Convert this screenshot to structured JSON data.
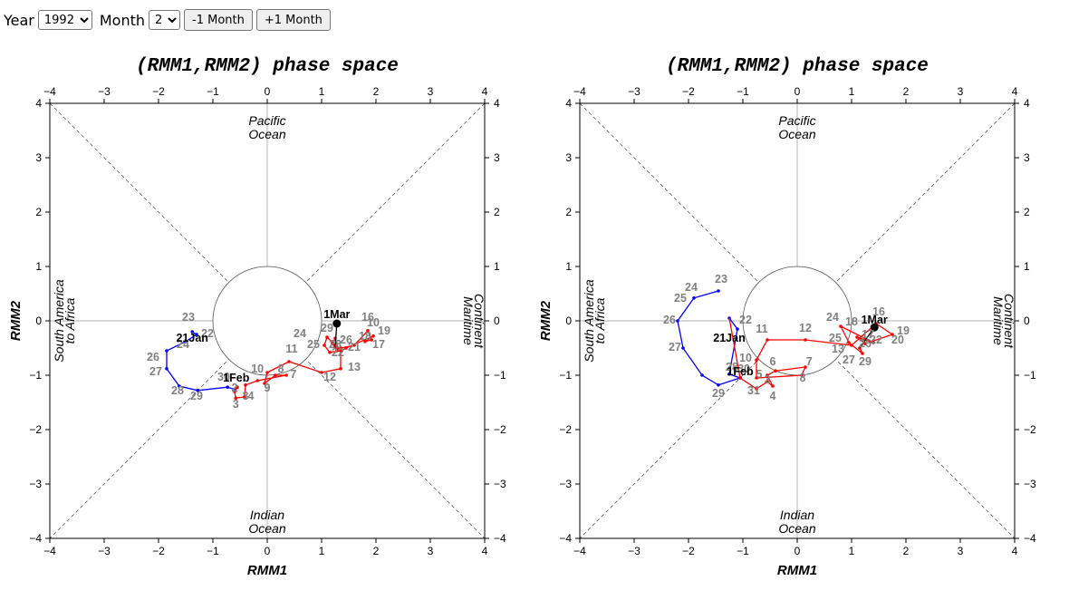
{
  "controls": {
    "year_label": "Year",
    "year_value": "1992",
    "month_label": "Month",
    "month_value": "2",
    "prev_button": "-1 Month",
    "next_button": "+1 Month"
  },
  "chart_data": [
    {
      "type": "scatter",
      "title": "(RMM1,RMM2) phase space",
      "xlabel": "RMM1",
      "ylabel": "RMM2",
      "xlim": [
        -4,
        4
      ],
      "ylim": [
        -4,
        4
      ],
      "ticks": [
        "-4",
        "-3",
        "-2",
        "-1",
        "0",
        "1",
        "2",
        "3",
        "4"
      ],
      "regions": {
        "top": [
          "Pacific",
          "Ocean"
        ],
        "bottom": [
          "Indian",
          "Ocean"
        ],
        "left": [
          "South America",
          "to Africa"
        ],
        "right": [
          "Maritime",
          "Continent"
        ]
      },
      "colors": {
        "month1": "#0000ff",
        "month2": "#ff0000",
        "month3": "#000000",
        "label": "#808080"
      },
      "series": [
        {
          "month": "Jan",
          "values": [
            {
              "x": -1.38,
              "y": -0.2,
              "label": "22"
            },
            {
              "x": -1.3,
              "y": -0.25,
              "label": "23"
            },
            {
              "x": -1.5,
              "y": -0.38,
              "label": "24"
            },
            {
              "x": -1.85,
              "y": -0.55,
              "label": "26"
            },
            {
              "x": -1.85,
              "y": -0.88,
              "label": "27"
            },
            {
              "x": -1.62,
              "y": -1.2,
              "label": "28"
            },
            {
              "x": -1.28,
              "y": -1.28,
              "label": "29"
            },
            {
              "x": -0.73,
              "y": -1.22,
              "label": "30"
            },
            {
              "x": -0.6,
              "y": -1.26,
              "label": "31"
            }
          ]
        },
        {
          "month": "Feb",
          "values": [
            {
              "x": -0.55,
              "y": -1.22,
              "label": "1"
            },
            {
              "x": -0.6,
              "y": -1.3,
              "label": "2"
            },
            {
              "x": -0.58,
              "y": -1.42,
              "label": "3"
            },
            {
              "x": -0.42,
              "y": -1.4,
              "label": "4"
            },
            {
              "x": -0.4,
              "y": -1.18,
              "label": "5"
            },
            {
              "x": -0.18,
              "y": -1.1,
              "label": "6"
            },
            {
              "x": 0.35,
              "y": -1.0,
              "label": "7"
            },
            {
              "x": 0.15,
              "y": -1.0,
              "label": "8"
            },
            {
              "x": -0.05,
              "y": -1.15,
              "label": "9"
            },
            {
              "x": 0.0,
              "y": -0.95,
              "label": "10"
            },
            {
              "x": 0.4,
              "y": -0.75,
              "label": "11"
            },
            {
              "x": 1.0,
              "y": -0.95,
              "label": "12"
            },
            {
              "x": 1.35,
              "y": -0.88,
              "label": "13"
            },
            {
              "x": 1.35,
              "y": -0.5,
              "label": "14"
            },
            {
              "x": 1.6,
              "y": -0.45,
              "label": "15"
            },
            {
              "x": 1.85,
              "y": -0.18,
              "label": "16"
            },
            {
              "x": 1.92,
              "y": -0.35,
              "label": "17"
            },
            {
              "x": 1.8,
              "y": -0.38,
              "label": "18"
            },
            {
              "x": 1.95,
              "y": -0.28,
              "label": "19"
            },
            {
              "x": 1.45,
              "y": -0.5,
              "label": "20"
            },
            {
              "x": 1.35,
              "y": -0.55,
              "label": "21"
            },
            {
              "x": 1.15,
              "y": -0.58,
              "label": "22"
            },
            {
              "x": 1.05,
              "y": -0.45,
              "label": "23"
            },
            {
              "x": 1.1,
              "y": -0.3,
              "label": "24"
            },
            {
              "x": 1.3,
              "y": -0.5,
              "label": "25"
            },
            {
              "x": 1.25,
              "y": -0.32,
              "label": "26"
            },
            {
              "x": 1.2,
              "y": -0.42,
              "label": "27"
            },
            {
              "x": 1.28,
              "y": -0.55,
              "label": "28"
            },
            {
              "x": 1.25,
              "y": -0.48,
              "label": "29"
            }
          ]
        },
        {
          "month": "Mar",
          "values": [
            {
              "x": 1.28,
              "y": -0.05,
              "label": "1"
            }
          ]
        }
      ],
      "dated_labels": [
        {
          "x": -1.38,
          "y": -0.38,
          "text": "21Jan"
        },
        {
          "x": -0.57,
          "y": -1.12,
          "text": "1Feb"
        },
        {
          "x": 1.28,
          "y": 0.05,
          "text": "1Mar"
        }
      ],
      "day_labels": [
        {
          "x": -1.45,
          "y": 0.0,
          "text": "23"
        },
        {
          "x": -1.1,
          "y": -0.3,
          "text": "22"
        },
        {
          "x": -1.55,
          "y": -0.5,
          "text": "24"
        },
        {
          "x": -2.1,
          "y": -0.73,
          "text": "26"
        },
        {
          "x": -2.05,
          "y": -1.0,
          "text": "27"
        },
        {
          "x": -1.65,
          "y": -1.35,
          "text": "28"
        },
        {
          "x": -1.3,
          "y": -1.45,
          "text": "29"
        },
        {
          "x": -0.8,
          "y": -1.1,
          "text": "30"
        },
        {
          "x": -0.6,
          "y": -1.3,
          "text": "2"
        },
        {
          "x": -0.58,
          "y": -1.6,
          "text": "3"
        },
        {
          "x": -0.3,
          "y": -1.45,
          "text": "4"
        },
        {
          "x": 0.0,
          "y": -1.3,
          "text": "9"
        },
        {
          "x": 0.25,
          "y": -0.95,
          "text": "8"
        },
        {
          "x": 0.48,
          "y": -1.05,
          "text": "7"
        },
        {
          "x": -0.18,
          "y": -0.95,
          "text": "10"
        },
        {
          "x": 0.45,
          "y": -0.58,
          "text": "11"
        },
        {
          "x": 1.15,
          "y": -1.1,
          "text": "12"
        },
        {
          "x": 1.6,
          "y": -0.92,
          "text": "13"
        },
        {
          "x": 1.85,
          "y": 0.0,
          "text": "16"
        },
        {
          "x": 1.95,
          "y": -0.1,
          "text": "10"
        },
        {
          "x": 2.15,
          "y": -0.25,
          "text": "19"
        },
        {
          "x": 2.05,
          "y": -0.5,
          "text": "17"
        },
        {
          "x": 1.8,
          "y": -0.35,
          "text": "18"
        },
        {
          "x": 1.6,
          "y": -0.55,
          "text": "21"
        },
        {
          "x": 1.45,
          "y": -0.42,
          "text": "26"
        },
        {
          "x": 1.25,
          "y": -0.5,
          "text": "28"
        },
        {
          "x": 1.3,
          "y": -0.65,
          "text": "22"
        },
        {
          "x": 0.6,
          "y": -0.3,
          "text": "24"
        },
        {
          "x": 0.85,
          "y": -0.5,
          "text": "25"
        },
        {
          "x": 1.1,
          "y": -0.2,
          "text": "29"
        },
        {
          "x": -0.4,
          "y": -1.45,
          "text": "3"
        }
      ]
    },
    {
      "type": "scatter",
      "title": "(RMM1,RMM2) phase space",
      "xlabel": "RMM1",
      "ylabel": "RMM2",
      "xlim": [
        -4,
        4
      ],
      "ylim": [
        -4,
        4
      ],
      "ticks": [
        "-4",
        "-3",
        "-2",
        "-1",
        "0",
        "1",
        "2",
        "3",
        "4"
      ],
      "regions": {
        "top": [
          "Pacific",
          "Ocean"
        ],
        "bottom": [
          "Indian",
          "Ocean"
        ],
        "left": [
          "South America",
          "to Africa"
        ],
        "right": [
          "Maritime",
          "Continent"
        ]
      },
      "colors": {
        "month1": "#0000ff",
        "month2": "#ff0000",
        "month3": "#000000",
        "label": "#808080"
      },
      "series": [
        {
          "month": "Jan",
          "values": [
            {
              "x": -1.45,
              "y": 0.55,
              "label": "23"
            },
            {
              "x": -1.9,
              "y": 0.42,
              "label": "24"
            },
            {
              "x": -2.2,
              "y": 0.0,
              "label": "26"
            },
            {
              "x": -2.1,
              "y": -0.5,
              "label": "27"
            },
            {
              "x": -1.75,
              "y": -1.0,
              "label": "28"
            },
            {
              "x": -1.45,
              "y": -1.18,
              "label": "29"
            },
            {
              "x": -1.05,
              "y": -1.05,
              "label": "31"
            },
            {
              "x": -1.25,
              "y": -0.98,
              "label": "30"
            },
            {
              "x": -1.1,
              "y": -0.15,
              "label": "22"
            },
            {
              "x": -1.25,
              "y": 0.05,
              "label": "21"
            }
          ]
        },
        {
          "month": "Feb",
          "values": [
            {
              "x": -1.05,
              "y": -1.05,
              "label": "1"
            },
            {
              "x": -0.75,
              "y": -1.25,
              "label": "2"
            },
            {
              "x": -0.55,
              "y": -1.12,
              "label": "3"
            },
            {
              "x": -0.45,
              "y": -1.2,
              "label": "4"
            },
            {
              "x": -0.55,
              "y": -1.0,
              "label": "5"
            },
            {
              "x": -0.4,
              "y": -0.92,
              "label": "6"
            },
            {
              "x": 0.15,
              "y": -0.85,
              "label": "7"
            },
            {
              "x": 0.08,
              "y": -1.0,
              "label": "8"
            },
            {
              "x": -0.75,
              "y": -1.05,
              "label": "9"
            },
            {
              "x": -0.75,
              "y": -0.72,
              "label": "10"
            },
            {
              "x": -0.55,
              "y": -0.35,
              "label": "11"
            },
            {
              "x": 0.15,
              "y": -0.35,
              "label": "12"
            },
            {
              "x": 1.0,
              "y": -0.45,
              "label": "13"
            },
            {
              "x": 1.45,
              "y": -0.05,
              "label": "16"
            },
            {
              "x": 1.75,
              "y": -0.25,
              "label": "19"
            },
            {
              "x": 1.25,
              "y": -0.42,
              "label": "17"
            },
            {
              "x": 1.1,
              "y": -0.3,
              "label": "18"
            },
            {
              "x": 1.4,
              "y": -0.4,
              "label": "20"
            },
            {
              "x": 0.8,
              "y": -0.1,
              "label": "24"
            },
            {
              "x": 0.95,
              "y": -0.4,
              "label": "25"
            },
            {
              "x": 1.2,
              "y": -0.6,
              "label": "27"
            },
            {
              "x": 1.15,
              "y": -0.5,
              "label": "29"
            }
          ]
        },
        {
          "month": "Mar",
          "values": [
            {
              "x": 1.42,
              "y": -0.12,
              "label": "1"
            }
          ]
        }
      ],
      "dated_labels": [
        {
          "x": -1.25,
          "y": -0.38,
          "text": "21Jan"
        },
        {
          "x": -1.05,
          "y": -1.0,
          "text": "1Feb"
        },
        {
          "x": 1.42,
          "y": -0.05,
          "text": "1Mar"
        }
      ],
      "day_labels": [
        {
          "x": -1.4,
          "y": 0.7,
          "text": "23"
        },
        {
          "x": -1.95,
          "y": 0.55,
          "text": "24"
        },
        {
          "x": -2.15,
          "y": 0.35,
          "text": "25"
        },
        {
          "x": -2.35,
          "y": -0.05,
          "text": "26"
        },
        {
          "x": -2.25,
          "y": -0.55,
          "text": "27"
        },
        {
          "x": -1.2,
          "y": -0.92,
          "text": "28"
        },
        {
          "x": -1.45,
          "y": -1.4,
          "text": "29"
        },
        {
          "x": -0.98,
          "y": -0.95,
          "text": "30"
        },
        {
          "x": -0.8,
          "y": -1.35,
          "text": "31"
        },
        {
          "x": -0.95,
          "y": -0.05,
          "text": "22"
        },
        {
          "x": -0.65,
          "y": -0.22,
          "text": "11"
        },
        {
          "x": 0.15,
          "y": -0.2,
          "text": "12"
        },
        {
          "x": -0.95,
          "y": -0.75,
          "text": "10"
        },
        {
          "x": -0.45,
          "y": -0.82,
          "text": "6"
        },
        {
          "x": -0.7,
          "y": -1.05,
          "text": "5"
        },
        {
          "x": -0.55,
          "y": -1.15,
          "text": "3"
        },
        {
          "x": -0.45,
          "y": -1.45,
          "text": "4"
        },
        {
          "x": 0.22,
          "y": -0.82,
          "text": "7"
        },
        {
          "x": 0.1,
          "y": -1.12,
          "text": "8"
        },
        {
          "x": 0.65,
          "y": 0.0,
          "text": "24"
        },
        {
          "x": 1.0,
          "y": -0.08,
          "text": "18"
        },
        {
          "x": 0.7,
          "y": -0.38,
          "text": "25"
        },
        {
          "x": 0.75,
          "y": -0.58,
          "text": "13"
        },
        {
          "x": 0.95,
          "y": -0.78,
          "text": "27"
        },
        {
          "x": 1.25,
          "y": -0.82,
          "text": "29"
        },
        {
          "x": 1.5,
          "y": 0.1,
          "text": "16"
        },
        {
          "x": 1.95,
          "y": -0.25,
          "text": "19"
        },
        {
          "x": 1.85,
          "y": -0.42,
          "text": "20"
        },
        {
          "x": 1.45,
          "y": -0.42,
          "text": "22"
        },
        {
          "x": 1.25,
          "y": -0.48,
          "text": "26"
        },
        {
          "x": 1.3,
          "y": -0.32,
          "text": "17"
        }
      ]
    }
  ]
}
